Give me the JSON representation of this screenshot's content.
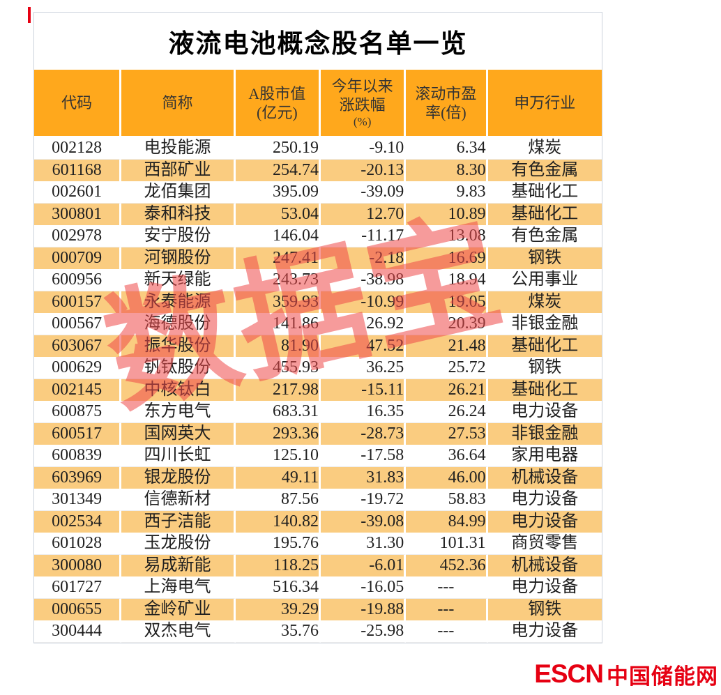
{
  "chart_data": {
    "type": "table",
    "title": "液流电池概念股名单一览",
    "columns": [
      "代码",
      "简称",
      "A股市值(亿元)",
      "今年以来涨跌幅(%)",
      "滚动市盈率(倍)",
      "申万行业"
    ],
    "column_header_lines": [
      [
        "代码"
      ],
      [
        "简称"
      ],
      [
        "A股市值",
        "(亿元)"
      ],
      [
        "今年以来",
        "涨跌幅",
        "(%)"
      ],
      [
        "滚动市盈",
        "率(倍)"
      ],
      [
        "申万行业"
      ]
    ],
    "rows": [
      [
        "002128",
        "电投能源",
        "250.19",
        "-9.10",
        "6.34",
        "煤炭"
      ],
      [
        "601168",
        "西部矿业",
        "254.74",
        "-20.13",
        "8.30",
        "有色金属"
      ],
      [
        "002601",
        "龙佰集团",
        "395.09",
        "-39.09",
        "9.83",
        "基础化工"
      ],
      [
        "300801",
        "泰和科技",
        "53.04",
        "12.70",
        "10.89",
        "基础化工"
      ],
      [
        "002978",
        "安宁股份",
        "146.04",
        "-11.17",
        "13.08",
        "有色金属"
      ],
      [
        "000709",
        "河钢股份",
        "247.41",
        "-2.18",
        "16.69",
        "钢铁"
      ],
      [
        "600956",
        "新天绿能",
        "243.73",
        "-38.98",
        "18.94",
        "公用事业"
      ],
      [
        "600157",
        "永泰能源",
        "359.93",
        "-10.99",
        "19.05",
        "煤炭"
      ],
      [
        "000567",
        "海德股份",
        "141.86",
        "26.92",
        "20.39",
        "非银金融"
      ],
      [
        "603067",
        "振华股份",
        "81.90",
        "47.52",
        "21.48",
        "基础化工"
      ],
      [
        "000629",
        "钒钛股份",
        "455.93",
        "36.25",
        "25.72",
        "钢铁"
      ],
      [
        "002145",
        "中核钛白",
        "217.98",
        "-15.11",
        "26.21",
        "基础化工"
      ],
      [
        "600875",
        "东方电气",
        "683.31",
        "16.35",
        "26.24",
        "电力设备"
      ],
      [
        "600517",
        "国网英大",
        "293.36",
        "-28.73",
        "27.53",
        "非银金融"
      ],
      [
        "600839",
        "四川长虹",
        "125.10",
        "-17.58",
        "36.64",
        "家用电器"
      ],
      [
        "603969",
        "银龙股份",
        "49.11",
        "31.83",
        "46.00",
        "机械设备"
      ],
      [
        "301349",
        "信德新材",
        "87.56",
        "-19.72",
        "58.83",
        "电力设备"
      ],
      [
        "002534",
        "西子洁能",
        "140.82",
        "-39.08",
        "84.99",
        "电力设备"
      ],
      [
        "601028",
        "玉龙股份",
        "195.76",
        "31.30",
        "101.31",
        "商贸零售"
      ],
      [
        "300080",
        "易成新能",
        "118.25",
        "-6.01",
        "452.36",
        "机械设备"
      ],
      [
        "601727",
        "上海电气",
        "516.34",
        "-16.05",
        "---",
        "电力设备"
      ],
      [
        "000655",
        "金岭矿业",
        "39.29",
        "-19.88",
        "---",
        "钢铁"
      ],
      [
        "300444",
        "双杰电气",
        "35.76",
        "-25.98",
        "---",
        "电力设备"
      ]
    ],
    "missing_value_marker": "---",
    "layout_hints": {
      "striped_rows": "even rows (2nd, 4th, ...) highlighted orange",
      "numeric_columns_right_aligned": true
    }
  },
  "watermark": {
    "text": "数据宝",
    "color": "#EE4848"
  },
  "footer": {
    "logo_en": "ESCN",
    "logo_cn": "中国储能网",
    "color": "#E60012"
  },
  "colors": {
    "header_bg": "#FFA81C",
    "stripe_bg": "#FACC80",
    "panel_border": "#CBD2DC",
    "text": "#1F1F1F",
    "accent_red": "#E60012"
  }
}
